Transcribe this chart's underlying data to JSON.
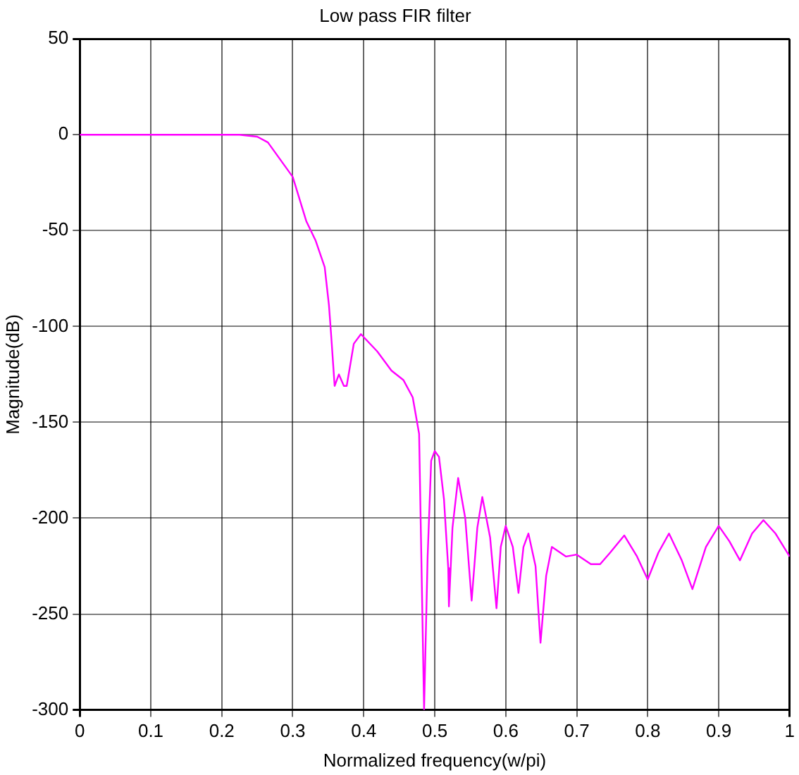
{
  "chart_data": {
    "type": "line",
    "title": "Low pass FIR filter",
    "xlabel": "Normalized frequency(w/pi)",
    "ylabel": "Magnitude(dB)",
    "x": [
      0,
      0.1,
      0.2,
      0.225,
      0.25,
      0.265,
      0.3,
      0.319,
      0.332,
      0.345,
      0.351,
      0.354,
      0.359,
      0.365,
      0.372,
      0.376,
      0.386,
      0.396,
      0.419,
      0.439,
      0.456,
      0.469,
      0.478,
      0.485,
      0.49,
      0.495,
      0.5,
      0.506,
      0.513,
      0.519,
      0.52,
      0.525,
      0.533,
      0.543,
      0.552,
      0.56,
      0.567,
      0.578,
      0.587,
      0.593,
      0.6,
      0.61,
      0.618,
      0.625,
      0.632,
      0.642,
      0.649,
      0.657,
      0.665,
      0.685,
      0.7,
      0.72,
      0.733,
      0.747,
      0.767,
      0.785,
      0.8,
      0.815,
      0.83,
      0.848,
      0.863,
      0.882,
      0.9,
      0.915,
      0.93,
      0.947,
      0.963,
      0.98,
      1
    ],
    "series": [
      {
        "color": "#ff00ff",
        "values": [
          0,
          0,
          0,
          0,
          -1,
          -4,
          -22,
          -45,
          -55,
          -69,
          -89,
          -104,
          -131,
          -125,
          -131,
          -131,
          -109,
          -104,
          -113,
          -123,
          -128,
          -137,
          -156,
          -300,
          -220,
          -170,
          -165,
          -168,
          -190,
          -226,
          -246,
          -205,
          -179,
          -200,
          -243,
          -205,
          -189,
          -210,
          -247,
          -215,
          -204,
          -215,
          -239,
          -215,
          -208,
          -225,
          -265,
          -230,
          -215,
          -220,
          -219,
          -224,
          -224,
          -218,
          -209,
          -220,
          -232,
          -218,
          -208,
          -222,
          -237,
          -215,
          -204,
          -212,
          -222,
          -208,
          -201,
          -208,
          -220
        ]
      }
    ],
    "xlim": [
      0,
      1
    ],
    "xticks": [
      0,
      0.1,
      0.2,
      0.3,
      0.4,
      0.5,
      0.6,
      0.7,
      0.8,
      0.9,
      1
    ],
    "ylim": [
      -300,
      50
    ],
    "yticks": [
      -300,
      -250,
      -200,
      -150,
      -100,
      -50,
      0,
      50
    ],
    "grid": true,
    "legend": false,
    "marker": "none",
    "line_style": "solid"
  }
}
